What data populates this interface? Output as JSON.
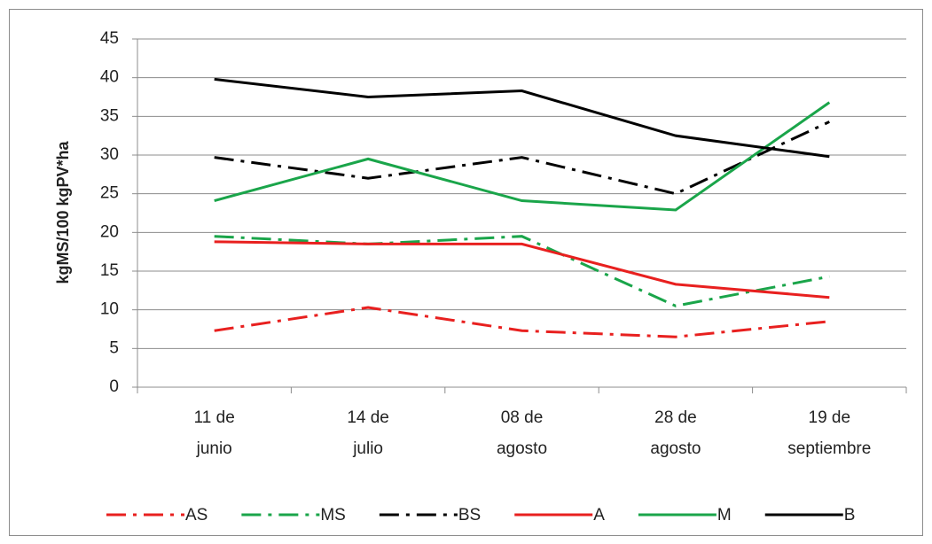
{
  "chart_data": {
    "type": "line",
    "y_label": "kgMS/100 kgPV*ha",
    "categories": [
      [
        "11 de",
        "junio"
      ],
      [
        "14 de",
        "julio"
      ],
      [
        "08 de",
        "agosto"
      ],
      [
        "28 de",
        "agosto"
      ],
      [
        "19 de",
        "septiembre"
      ]
    ],
    "ylim": [
      0,
      45
    ],
    "yticks": [
      0,
      5,
      10,
      15,
      20,
      25,
      30,
      35,
      40,
      45
    ],
    "grid": true,
    "series": [
      {
        "name": "AS",
        "color": "#e8201f",
        "dash": "dash-dot",
        "values": [
          7.3,
          10.3,
          7.3,
          6.5,
          8.5
        ]
      },
      {
        "name": "MS",
        "color": "#1aa54a",
        "dash": "dash-dot",
        "values": [
          19.5,
          18.5,
          19.5,
          10.5,
          14.3
        ]
      },
      {
        "name": "BS",
        "color": "#000000",
        "dash": "dash-dot",
        "values": [
          29.7,
          27,
          29.7,
          25,
          34.3
        ]
      },
      {
        "name": "A",
        "color": "#e8201f",
        "dash": "solid",
        "values": [
          18.8,
          18.5,
          18.5,
          13.3,
          11.6
        ]
      },
      {
        "name": "M",
        "color": "#1aa54a",
        "dash": "solid",
        "values": [
          24.1,
          29.5,
          24.1,
          22.9,
          36.8
        ]
      },
      {
        "name": "B",
        "color": "#000000",
        "dash": "solid",
        "values": [
          39.8,
          37.5,
          38.3,
          32.5,
          29.8
        ]
      }
    ]
  }
}
